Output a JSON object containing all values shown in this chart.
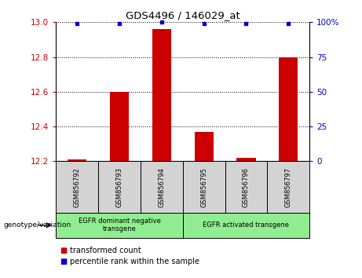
{
  "title": "GDS4496 / 146029_at",
  "samples": [
    "GSM856792",
    "GSM856793",
    "GSM856794",
    "GSM856795",
    "GSM856796",
    "GSM856797"
  ],
  "transformed_count": [
    12.21,
    12.6,
    12.96,
    12.37,
    12.22,
    12.8
  ],
  "percentile_rank": [
    99,
    99,
    100,
    99,
    99,
    99
  ],
  "ylim_left": [
    12.2,
    13.0
  ],
  "ylim_right": [
    0,
    100
  ],
  "yticks_left": [
    12.2,
    12.4,
    12.6,
    12.8,
    13.0
  ],
  "yticks_right": [
    0,
    25,
    50,
    75,
    100
  ],
  "groups": [
    {
      "label": "EGFR dominant negative\ntransgene",
      "samples_idx": [
        0,
        1,
        2
      ],
      "color": "#90ee90"
    },
    {
      "label": "EGFR activated transgene",
      "samples_idx": [
        3,
        4,
        5
      ],
      "color": "#90ee90"
    }
  ],
  "bar_color": "#cc0000",
  "dot_color": "#0000cc",
  "left_tick_color": "#cc0000",
  "right_tick_color": "#0000cc",
  "sample_box_color": "#d3d3d3",
  "legend_items": [
    {
      "color": "#cc0000",
      "label": "transformed count"
    },
    {
      "color": "#0000cc",
      "label": "percentile rank within the sample"
    }
  ],
  "genotype_label": "genotype/variation"
}
